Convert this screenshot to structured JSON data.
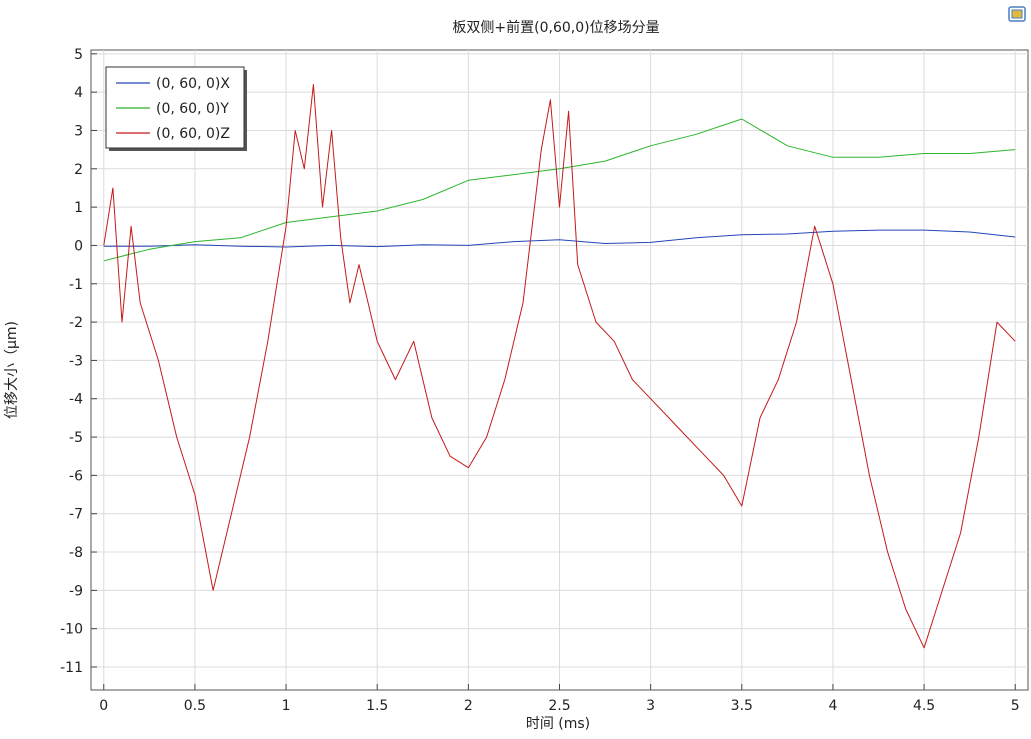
{
  "chart_data": {
    "type": "line",
    "title": "板双侧+前置(0,60,0)位移场分量",
    "xlabel": "时间 (ms)",
    "ylabel": "位移大小（µm)",
    "xlim": [
      -0.07,
      5.07
    ],
    "ylim": [
      -11.6,
      5.1
    ],
    "x_ticks": [
      0,
      0.5,
      1,
      1.5,
      2,
      2.5,
      3,
      3.5,
      4,
      4.5,
      5
    ],
    "x_tick_labels": [
      "0",
      "0.5",
      "1",
      "1.5",
      "2",
      "2.5",
      "3",
      "3.5",
      "4",
      "4.5",
      "5"
    ],
    "y_ticks": [
      5,
      4,
      3,
      2,
      1,
      0,
      -1,
      -2,
      -3,
      -4,
      -5,
      -6,
      -7,
      -8,
      -9,
      -10,
      -11
    ],
    "y_tick_labels": [
      "5",
      "4",
      "3",
      "2",
      "1",
      "0",
      "-1",
      "-2",
      "-3",
      "-4",
      "-5",
      "-6",
      "-7",
      "-8",
      "-9",
      "-10",
      "-11"
    ],
    "grid": true,
    "legend_position": "top-left",
    "series": [
      {
        "name": "(0, 60, 0)X",
        "color": "#2346b8",
        "x": [
          0,
          0.25,
          0.5,
          0.75,
          1,
          1.25,
          1.5,
          1.75,
          2,
          2.25,
          2.5,
          2.75,
          3,
          3.25,
          3.5,
          3.75,
          4,
          4.25,
          4.5,
          4.75,
          5
        ],
        "y": [
          -0.02,
          -0.02,
          0.02,
          -0.02,
          -0.04,
          0.0,
          -0.03,
          0.02,
          0.0,
          0.1,
          0.15,
          0.05,
          0.08,
          0.2,
          0.28,
          0.3,
          0.37,
          0.4,
          0.4,
          0.35,
          0.22
        ]
      },
      {
        "name": "(0, 60, 0)Y",
        "color": "#2db52d",
        "x": [
          0,
          0.25,
          0.5,
          0.75,
          1,
          1.25,
          1.5,
          1.75,
          2,
          2.25,
          2.5,
          2.75,
          3,
          3.25,
          3.5,
          3.75,
          4,
          4.25,
          4.5,
          4.75,
          5
        ],
        "y": [
          -0.4,
          -0.1,
          0.1,
          0.2,
          0.6,
          0.75,
          0.9,
          1.2,
          1.7,
          1.85,
          2.0,
          2.2,
          2.6,
          2.9,
          3.3,
          2.6,
          2.3,
          2.3,
          2.4,
          2.4,
          2.5
        ]
      },
      {
        "name": "(0, 60, 0)Z",
        "color": "#c41a1a",
        "x": [
          0,
          0.05,
          0.1,
          0.15,
          0.2,
          0.3,
          0.4,
          0.5,
          0.6,
          0.7,
          0.8,
          0.9,
          1.0,
          1.05,
          1.1,
          1.15,
          1.2,
          1.25,
          1.3,
          1.35,
          1.4,
          1.5,
          1.6,
          1.7,
          1.8,
          1.9,
          2.0,
          2.1,
          2.2,
          2.3,
          2.4,
          2.45,
          2.5,
          2.55,
          2.6,
          2.7,
          2.8,
          2.9,
          3.0,
          3.1,
          3.2,
          3.3,
          3.4,
          3.5,
          3.6,
          3.7,
          3.8,
          3.9,
          4.0,
          4.1,
          4.2,
          4.3,
          4.4,
          4.5,
          4.6,
          4.7,
          4.8,
          4.9,
          5.0
        ],
        "y": [
          0.0,
          1.5,
          -2.0,
          0.5,
          -1.5,
          -3.0,
          -5.0,
          -6.5,
          -9.0,
          -7.0,
          -5.0,
          -2.5,
          0.5,
          3.0,
          2.0,
          4.2,
          1.0,
          3.0,
          0.2,
          -1.5,
          -0.5,
          -2.5,
          -3.5,
          -2.5,
          -4.5,
          -5.5,
          -5.8,
          -5.0,
          -3.5,
          -1.5,
          2.5,
          3.8,
          1.0,
          3.5,
          -0.5,
          -2.0,
          -2.5,
          -3.5,
          -4.0,
          -4.5,
          -5.0,
          -5.5,
          -6.0,
          -6.8,
          -4.5,
          -3.5,
          -2.0,
          0.5,
          -1.0,
          -3.5,
          -6.0,
          -8.0,
          -9.5,
          -10.5,
          -9.0,
          -7.5,
          -5.0,
          -2.0,
          -2.5
        ]
      }
    ]
  },
  "toolbar": {
    "corner_icon": "window-icon"
  }
}
